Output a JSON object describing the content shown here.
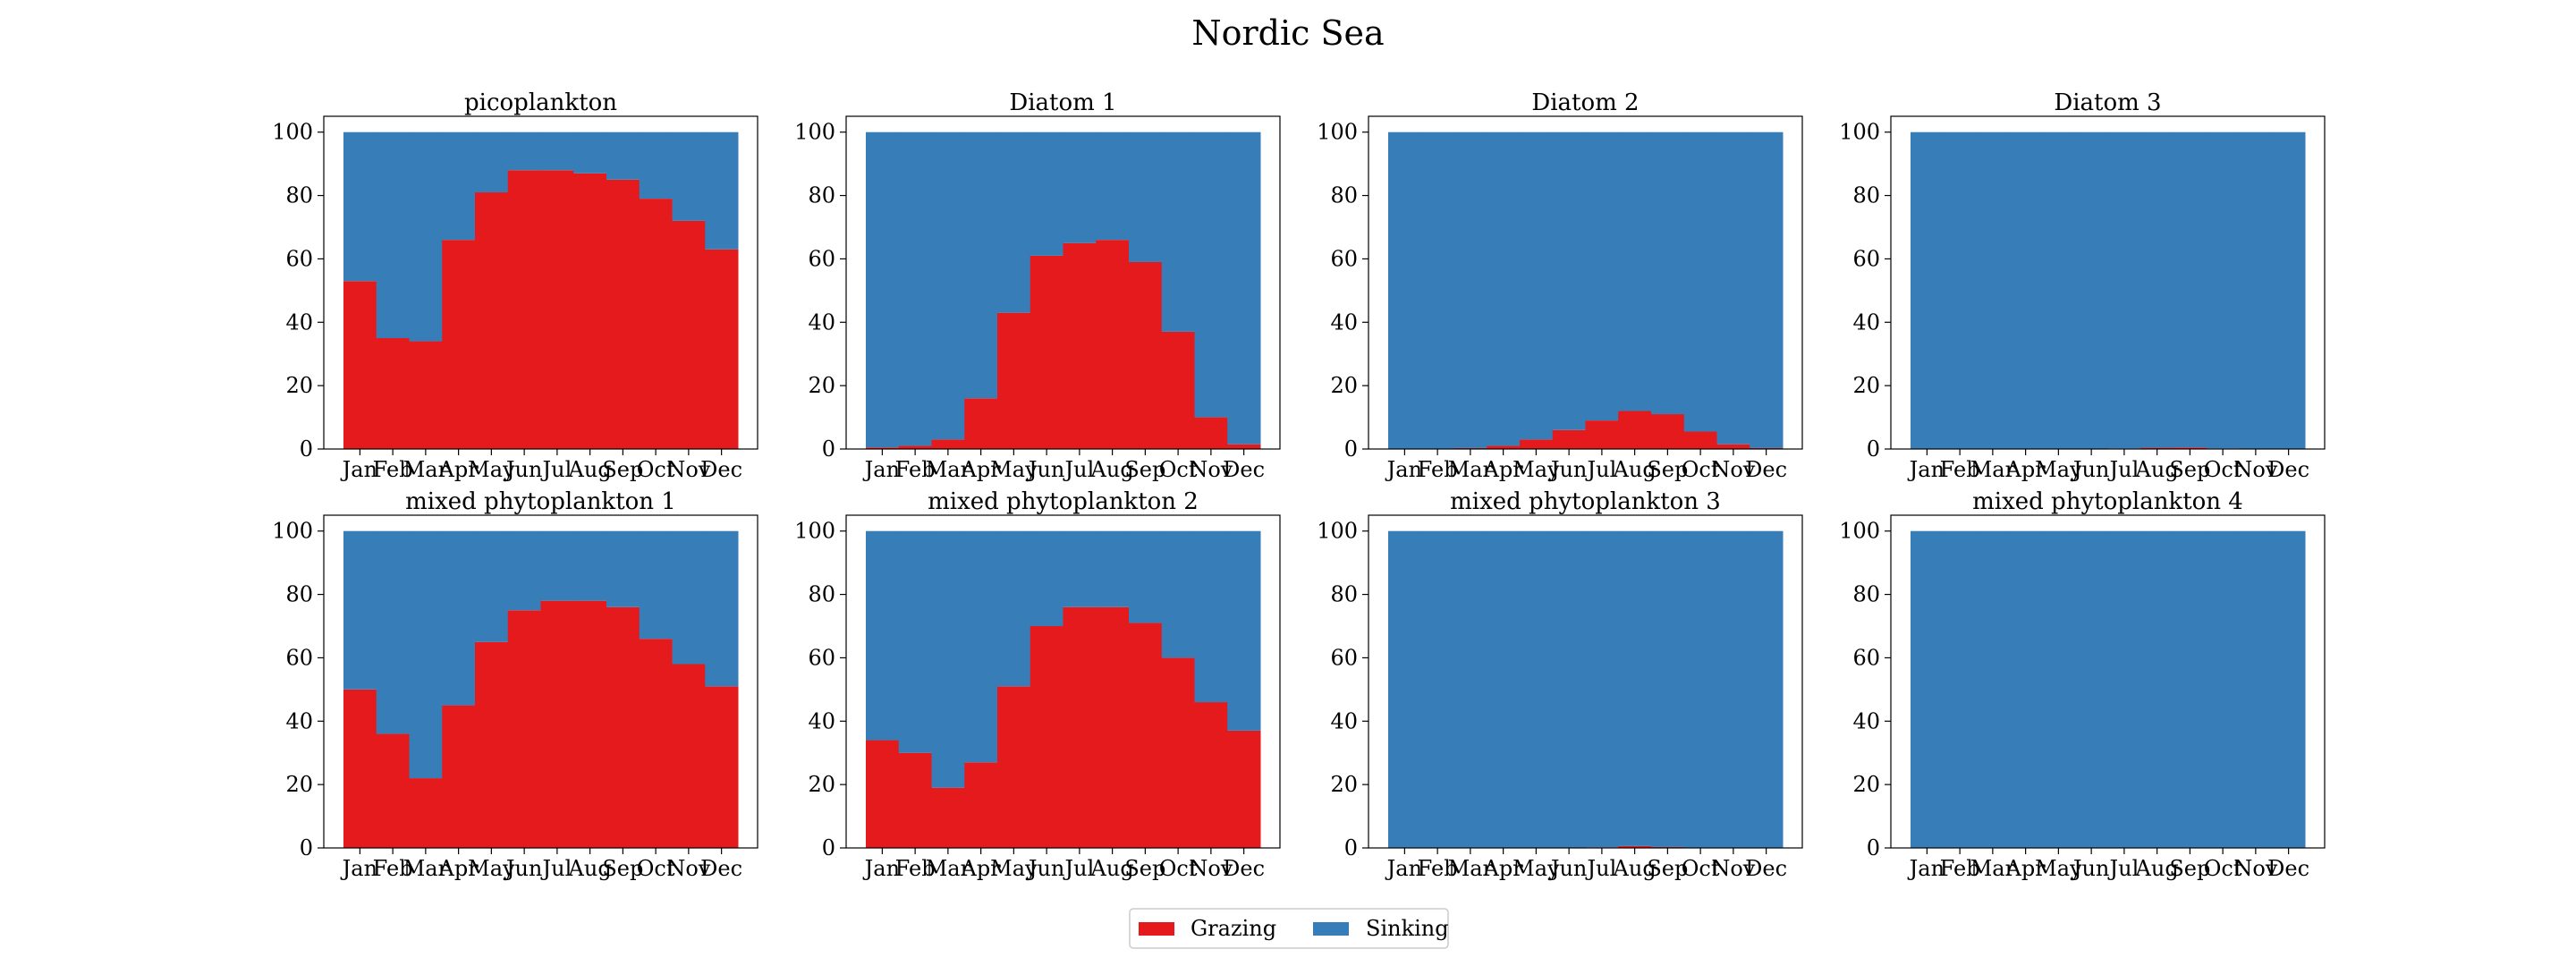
{
  "figure": {
    "title": "Nordic Sea"
  },
  "legend": {
    "placement": "bottom-center",
    "entries": [
      {
        "name": "Grazing",
        "color": "#e41a1c"
      },
      {
        "name": "Sinking",
        "color": "#377eb8"
      }
    ]
  },
  "chart_data": [
    {
      "type": "bar",
      "stacked": true,
      "title": "picoplankton",
      "categories": [
        "Jan",
        "Feb",
        "Mar",
        "Apr",
        "May",
        "Jun",
        "Jul",
        "Aug",
        "Sep",
        "Oct",
        "Nov",
        "Dec"
      ],
      "ylim": [
        0,
        105
      ],
      "yticks": [
        0,
        20,
        40,
        60,
        80,
        100
      ],
      "series": [
        {
          "name": "Grazing",
          "color": "#e41a1c",
          "values": [
            53,
            35,
            34,
            66,
            81,
            88,
            88,
            87,
            85,
            79,
            72,
            63
          ]
        },
        {
          "name": "Sinking",
          "color": "#377eb8",
          "values": [
            47,
            65,
            66,
            34,
            19,
            12,
            12,
            13,
            15,
            21,
            28,
            37
          ]
        }
      ]
    },
    {
      "type": "bar",
      "stacked": true,
      "title": "Diatom 1",
      "categories": [
        "Jan",
        "Feb",
        "Mar",
        "Apr",
        "May",
        "Jun",
        "Jul",
        "Aug",
        "Sep",
        "Oct",
        "Nov",
        "Dec"
      ],
      "ylim": [
        0,
        105
      ],
      "yticks": [
        0,
        20,
        40,
        60,
        80,
        100
      ],
      "series": [
        {
          "name": "Grazing",
          "color": "#e41a1c",
          "values": [
            0.5,
            1,
            3,
            16,
            43,
            61,
            65,
            66,
            59,
            37,
            10,
            1.5
          ]
        },
        {
          "name": "Sinking",
          "color": "#377eb8",
          "values": [
            99.5,
            99,
            97,
            84,
            57,
            39,
            35,
            34,
            41,
            63,
            90,
            98.5
          ]
        }
      ]
    },
    {
      "type": "bar",
      "stacked": true,
      "title": "Diatom 2",
      "categories": [
        "Jan",
        "Feb",
        "Mar",
        "Apr",
        "May",
        "Jun",
        "Jul",
        "Aug",
        "Sep",
        "Oct",
        "Nov",
        "Dec"
      ],
      "ylim": [
        0,
        105
      ],
      "yticks": [
        0,
        20,
        40,
        60,
        80,
        100
      ],
      "series": [
        {
          "name": "Grazing",
          "color": "#e41a1c",
          "values": [
            0,
            0,
            0.3,
            1,
            3,
            6,
            9,
            12,
            11,
            5.5,
            1.5,
            0.3
          ]
        },
        {
          "name": "Sinking",
          "color": "#377eb8",
          "values": [
            100,
            100,
            99.7,
            99,
            97,
            94,
            91,
            88,
            89,
            94.5,
            98.5,
            99.7
          ]
        }
      ]
    },
    {
      "type": "bar",
      "stacked": true,
      "title": "Diatom 3",
      "categories": [
        "Jan",
        "Feb",
        "Mar",
        "Apr",
        "May",
        "Jun",
        "Jul",
        "Aug",
        "Sep",
        "Oct",
        "Nov",
        "Dec"
      ],
      "ylim": [
        0,
        105
      ],
      "yticks": [
        0,
        20,
        40,
        60,
        80,
        100
      ],
      "series": [
        {
          "name": "Grazing",
          "color": "#e41a1c",
          "values": [
            0,
            0,
            0,
            0,
            0,
            0,
            0.2,
            0.4,
            0.5,
            0.2,
            0,
            0
          ]
        },
        {
          "name": "Sinking",
          "color": "#377eb8",
          "values": [
            100,
            100,
            100,
            100,
            100,
            100,
            99.8,
            99.6,
            99.5,
            99.8,
            100,
            100
          ]
        }
      ]
    },
    {
      "type": "bar",
      "stacked": true,
      "title": "mixed phytoplankton 1",
      "categories": [
        "Jan",
        "Feb",
        "Mar",
        "Apr",
        "May",
        "Jun",
        "Jul",
        "Aug",
        "Sep",
        "Oct",
        "Nov",
        "Dec"
      ],
      "ylim": [
        0,
        105
      ],
      "yticks": [
        0,
        20,
        40,
        60,
        80,
        100
      ],
      "series": [
        {
          "name": "Grazing",
          "color": "#e41a1c",
          "values": [
            50,
            36,
            22,
            45,
            65,
            75,
            78,
            78,
            76,
            66,
            58,
            51
          ]
        },
        {
          "name": "Sinking",
          "color": "#377eb8",
          "values": [
            50,
            64,
            78,
            55,
            35,
            25,
            22,
            22,
            24,
            34,
            42,
            49
          ]
        }
      ]
    },
    {
      "type": "bar",
      "stacked": true,
      "title": "mixed phytoplankton 2",
      "categories": [
        "Jan",
        "Feb",
        "Mar",
        "Apr",
        "May",
        "Jun",
        "Jul",
        "Aug",
        "Sep",
        "Oct",
        "Nov",
        "Dec"
      ],
      "ylim": [
        0,
        105
      ],
      "yticks": [
        0,
        20,
        40,
        60,
        80,
        100
      ],
      "series": [
        {
          "name": "Grazing",
          "color": "#e41a1c",
          "values": [
            34,
            30,
            19,
            27,
            51,
            70,
            76,
            76,
            71,
            60,
            46,
            37
          ]
        },
        {
          "name": "Sinking",
          "color": "#377eb8",
          "values": [
            66,
            70,
            81,
            73,
            49,
            30,
            24,
            24,
            29,
            40,
            54,
            63
          ]
        }
      ]
    },
    {
      "type": "bar",
      "stacked": true,
      "title": "mixed phytoplankton 3",
      "categories": [
        "Jan",
        "Feb",
        "Mar",
        "Apr",
        "May",
        "Jun",
        "Jul",
        "Aug",
        "Sep",
        "Oct",
        "Nov",
        "Dec"
      ],
      "ylim": [
        0,
        105
      ],
      "yticks": [
        0,
        20,
        40,
        60,
        80,
        100
      ],
      "series": [
        {
          "name": "Grazing",
          "color": "#e41a1c",
          "values": [
            0,
            0,
            0,
            0,
            0,
            0,
            0.2,
            0.6,
            0.3,
            0,
            0,
            0
          ]
        },
        {
          "name": "Sinking",
          "color": "#377eb8",
          "values": [
            100,
            100,
            100,
            100,
            100,
            100,
            99.8,
            99.4,
            99.7,
            100,
            100,
            100
          ]
        }
      ]
    },
    {
      "type": "bar",
      "stacked": true,
      "title": "mixed phytoplankton 4",
      "categories": [
        "Jan",
        "Feb",
        "Mar",
        "Apr",
        "May",
        "Jun",
        "Jul",
        "Aug",
        "Sep",
        "Oct",
        "Nov",
        "Dec"
      ],
      "ylim": [
        0,
        105
      ],
      "yticks": [
        0,
        20,
        40,
        60,
        80,
        100
      ],
      "series": [
        {
          "name": "Grazing",
          "color": "#e41a1c",
          "values": [
            0,
            0,
            0,
            0,
            0,
            0,
            0,
            0,
            0,
            0,
            0,
            0
          ]
        },
        {
          "name": "Sinking",
          "color": "#377eb8",
          "values": [
            100,
            100,
            100,
            100,
            100,
            100,
            100,
            100,
            100,
            100,
            100,
            100
          ]
        }
      ]
    }
  ]
}
